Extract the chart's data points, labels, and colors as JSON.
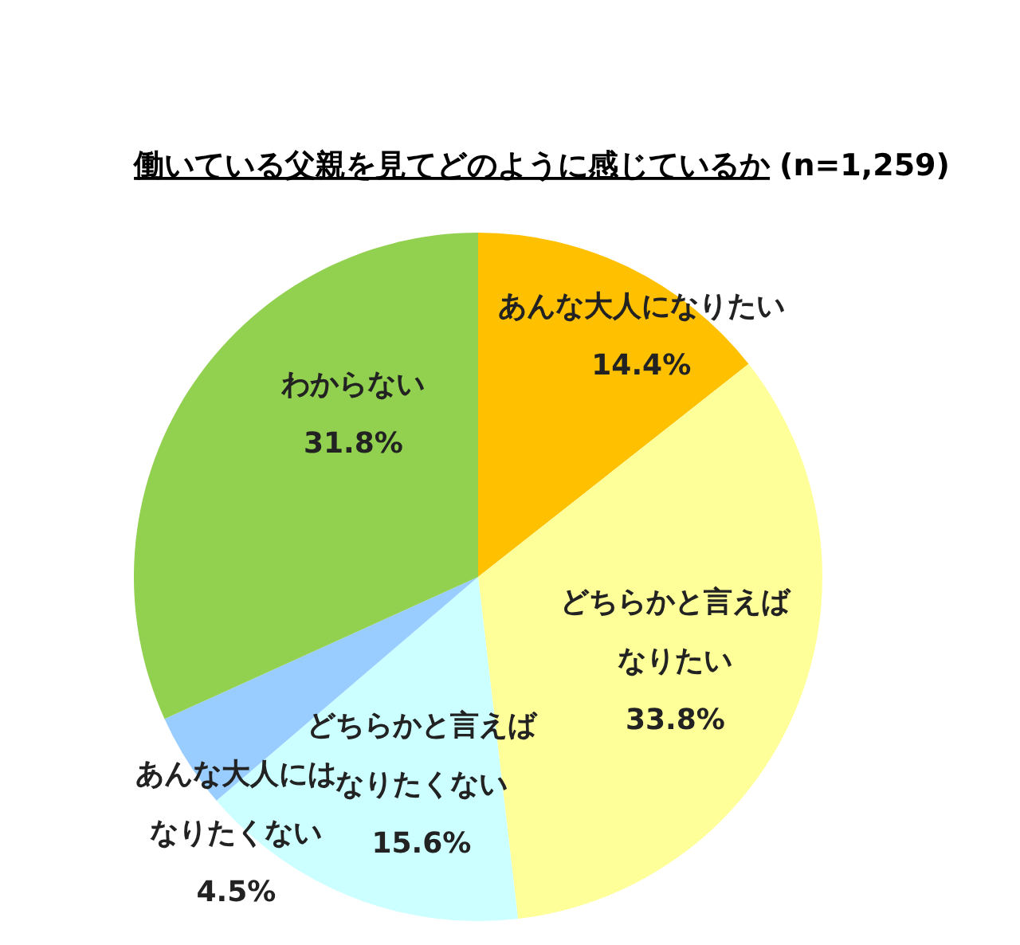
{
  "chart_data": {
    "type": "pie",
    "title": "働いている父親を見てどのように感じているか",
    "subtitle": "(n=1,259)",
    "categories": [
      "あんな大人になりたい",
      "どちらかと言えばなりたい",
      "どちらかと言えばなりたくない",
      "あんな大人にはなりたくない",
      "わからない"
    ],
    "values": [
      14.4,
      33.8,
      15.6,
      4.5,
      31.8
    ],
    "value_labels": [
      "14.4%",
      "33.8%",
      "15.6%",
      "4.5%",
      "31.8%"
    ],
    "colors": [
      "#ffc000",
      "#ffff99",
      "#ccffff",
      "#99ccff",
      "#92d050"
    ]
  }
}
